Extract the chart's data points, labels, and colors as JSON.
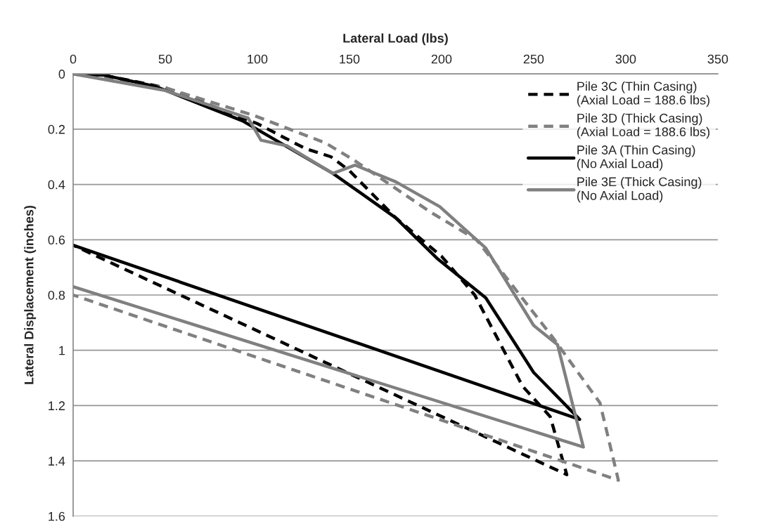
{
  "chart_data": {
    "type": "line",
    "xlabel": "Lateral Load (lbs)",
    "ylabel": "Lateral Displacement (inches)",
    "xlim": [
      0,
      350
    ],
    "xticks": [
      0,
      50,
      100,
      150,
      200,
      250,
      300,
      350
    ],
    "ylim": [
      1.6,
      0
    ],
    "yticks": [
      0,
      0.2,
      0.4,
      0.6,
      0.8,
      1,
      1.2,
      1.4,
      1.6
    ],
    "grid": "y",
    "legend": "top right",
    "marker": "none",
    "series": [
      {
        "name": "Pile 3C (Thin Casing)\n(Axial Load = 188.6 lbs)",
        "color": "#000000",
        "line_style": "dashed",
        "x": [
          0,
          17,
          50,
          100,
          126,
          140,
          150,
          175,
          200,
          218,
          244,
          259,
          268,
          0
        ],
        "values": [
          0,
          0.005,
          0.05,
          0.18,
          0.27,
          0.3,
          0.35,
          0.52,
          0.66,
          0.8,
          1.13,
          1.24,
          1.45,
          0.62
        ]
      },
      {
        "name": "Pile 3D (Thick Casing)\n(Axial Load = 188.6 lbs)",
        "color": "#808080",
        "line_style": "dashed",
        "x": [
          0,
          50,
          98,
          137,
          152,
          194,
          219,
          239,
          260,
          286,
          296,
          0
        ],
        "values": [
          0,
          0.05,
          0.15,
          0.25,
          0.31,
          0.5,
          0.6,
          0.77,
          0.95,
          1.19,
          1.47,
          0.8
        ]
      },
      {
        "name": "Pile 3A (Thin Casing)\n(No Axial Load)",
        "color": "#000000",
        "line_style": "solid",
        "x": [
          0,
          17,
          45,
          92,
          141,
          175,
          198,
          224,
          250,
          275,
          0
        ],
        "values": [
          0,
          0.005,
          0.046,
          0.17,
          0.36,
          0.52,
          0.67,
          0.81,
          1.08,
          1.25,
          0.62
        ]
      },
      {
        "name": "Pile 3E (Thick Casing)\n(No Axial Load)",
        "color": "#808080",
        "line_style": "solid",
        "x": [
          0,
          50,
          95,
          102,
          116,
          141,
          153,
          175,
          199,
          224,
          250,
          263,
          277,
          0
        ],
        "values": [
          0,
          0.06,
          0.16,
          0.24,
          0.26,
          0.36,
          0.33,
          0.39,
          0.48,
          0.63,
          0.91,
          0.98,
          1.35,
          0.77
        ]
      }
    ]
  }
}
